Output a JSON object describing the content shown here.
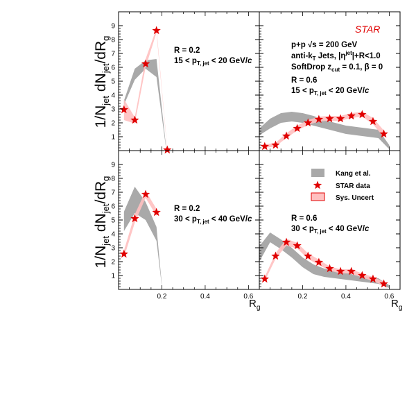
{
  "figure": {
    "ylabel": "1/N",
    "ylabel_sub1": "jet",
    "ylabel_mid": " dN",
    "ylabel_sub2": "jet",
    "ylabel_end": "/dR",
    "ylabel_sub3": "g",
    "xlabel": "R",
    "xlabel_sub": "g",
    "experiment": "STAR",
    "info_line1": "p+p  √s = 200 GeV",
    "info_line2a": "anti-k",
    "info_line2_sub": "T",
    "info_line2b": " Jets, |η",
    "info_line2_sup": "jet",
    "info_line2c": "|+R<1.0",
    "info_line3a": "SoftDrop z",
    "info_line3_sub": "cut",
    "info_line3b": " = 0.1,  β = 0"
  },
  "legend": {
    "theory": "Kang et al.",
    "data": "STAR data",
    "sys": "Sys. Uncert"
  },
  "colors": {
    "star": "#e00000",
    "sys_fill": "#ffc0c0",
    "theory": "#a9a9a9"
  },
  "chart_data": [
    {
      "type": "scatter",
      "panel": "top-left",
      "R_label": "R = 0.2",
      "pt_a": "15 < p",
      "pt_sub": "T, jet",
      "pt_b": " < 20 GeV/",
      "pt_c": "c",
      "xlim": [
        0,
        0.65
      ],
      "ylim": [
        0,
        10
      ],
      "xticks": [],
      "yticks": [
        1,
        2,
        3,
        4,
        5,
        6,
        7,
        8,
        9
      ],
      "x": [
        0.025,
        0.075,
        0.125,
        0.175,
        0.225
      ],
      "y": [
        2.95,
        2.2,
        6.25,
        8.65,
        0.05
      ],
      "sys_lo": [
        2.2,
        1.95,
        6.0,
        8.5,
        0.0
      ],
      "sys_hi": [
        3.7,
        2.4,
        6.6,
        8.8,
        0.1
      ],
      "theory_x": [
        0.025,
        0.075,
        0.125,
        0.175,
        0.22
      ],
      "theory_lo": [
        3.3,
        5.1,
        5.9,
        5.3,
        0.1
      ],
      "theory_hi": [
        3.6,
        5.9,
        6.5,
        6.6,
        0.2
      ]
    },
    {
      "type": "scatter",
      "panel": "top-right",
      "R_label": "R = 0.6",
      "pt_a": "15 < p",
      "pt_sub": "T, jet",
      "pt_b": " < 20 GeV/",
      "pt_c": "c",
      "xlim": [
        0,
        0.65
      ],
      "ylim": [
        0,
        10
      ],
      "xticks": [],
      "yticks": [],
      "x": [
        0.025,
        0.075,
        0.125,
        0.175,
        0.225,
        0.275,
        0.325,
        0.375,
        0.425,
        0.475,
        0.525,
        0.575
      ],
      "y": [
        0.3,
        0.4,
        1.05,
        1.6,
        2.0,
        2.25,
        2.3,
        2.3,
        2.5,
        2.6,
        2.1,
        1.2
      ],
      "sys_lo": [
        0.2,
        0.3,
        0.9,
        1.45,
        1.85,
        2.1,
        2.15,
        2.15,
        2.35,
        2.45,
        1.9,
        0.95
      ],
      "sys_hi": [
        0.45,
        0.55,
        1.25,
        1.8,
        2.2,
        2.45,
        2.5,
        2.5,
        2.7,
        2.8,
        2.35,
        1.45
      ],
      "theory_x": [
        0.0,
        0.05,
        0.1,
        0.15,
        0.2,
        0.25,
        0.3,
        0.35,
        0.4,
        0.45,
        0.5,
        0.55,
        0.6
      ],
      "theory_lo": [
        1.1,
        1.6,
        2.0,
        2.1,
        2.0,
        1.8,
        1.6,
        1.4,
        1.2,
        1.1,
        1.0,
        0.9,
        0.1
      ],
      "theory_hi": [
        1.6,
        2.3,
        2.7,
        2.8,
        2.7,
        2.5,
        2.2,
        2.0,
        1.8,
        1.7,
        1.6,
        1.5,
        0.4
      ]
    },
    {
      "type": "scatter",
      "panel": "bottom-left",
      "R_label": "R = 0.2",
      "pt_a": "30 < p",
      "pt_sub": "T, jet",
      "pt_b": " < 40 GeV/",
      "pt_c": "c",
      "xlim": [
        0,
        0.65
      ],
      "ylim": [
        0,
        10
      ],
      "xticks": [
        0.2,
        0.4,
        0.6
      ],
      "yticks": [
        1,
        2,
        3,
        4,
        5,
        6,
        7,
        8,
        9
      ],
      "x": [
        0.025,
        0.075,
        0.125,
        0.175
      ],
      "y": [
        2.55,
        5.1,
        6.85,
        5.55
      ],
      "sys_lo": [
        2.3,
        4.8,
        6.6,
        5.3
      ],
      "sys_hi": [
        2.8,
        5.4,
        7.1,
        5.8
      ],
      "theory_x": [
        0.025,
        0.075,
        0.125,
        0.175,
        0.2
      ],
      "theory_lo": [
        4.2,
        5.5,
        5.0,
        3.5,
        0.2
      ],
      "theory_hi": [
        5.6,
        7.4,
        6.3,
        4.5,
        0.3
      ]
    },
    {
      "type": "scatter",
      "panel": "bottom-right",
      "R_label": "R = 0.6",
      "pt_a": "30 < p",
      "pt_sub": "T, jet",
      "pt_b": " < 40 GeV/",
      "pt_c": "c",
      "xlim": [
        0,
        0.65
      ],
      "ylim": [
        0,
        10
      ],
      "xticks": [
        0.2,
        0.4,
        0.6
      ],
      "yticks": [],
      "x": [
        0.025,
        0.075,
        0.125,
        0.175,
        0.225,
        0.275,
        0.325,
        0.375,
        0.425,
        0.475,
        0.525,
        0.575
      ],
      "y": [
        0.75,
        2.4,
        3.4,
        3.15,
        2.4,
        1.95,
        1.5,
        1.3,
        1.3,
        1.0,
        0.75,
        0.4
      ],
      "sys_lo": [
        0.6,
        2.2,
        3.15,
        2.95,
        2.2,
        1.75,
        1.35,
        1.15,
        1.15,
        0.85,
        0.6,
        0.25
      ],
      "sys_hi": [
        0.9,
        2.6,
        3.65,
        3.35,
        2.6,
        2.15,
        1.65,
        1.45,
        1.45,
        1.15,
        0.9,
        0.55
      ],
      "theory_x": [
        0.0,
        0.05,
        0.1,
        0.15,
        0.2,
        0.25,
        0.3,
        0.35,
        0.4,
        0.45,
        0.5,
        0.55,
        0.6
      ],
      "theory_lo": [
        2.0,
        3.4,
        2.9,
        2.3,
        1.6,
        1.1,
        0.9,
        0.8,
        0.7,
        0.6,
        0.5,
        0.4,
        0.1
      ],
      "theory_hi": [
        3.1,
        4.1,
        3.6,
        3.0,
        2.3,
        1.8,
        1.5,
        1.3,
        1.2,
        1.0,
        0.9,
        0.8,
        0.3
      ]
    }
  ]
}
